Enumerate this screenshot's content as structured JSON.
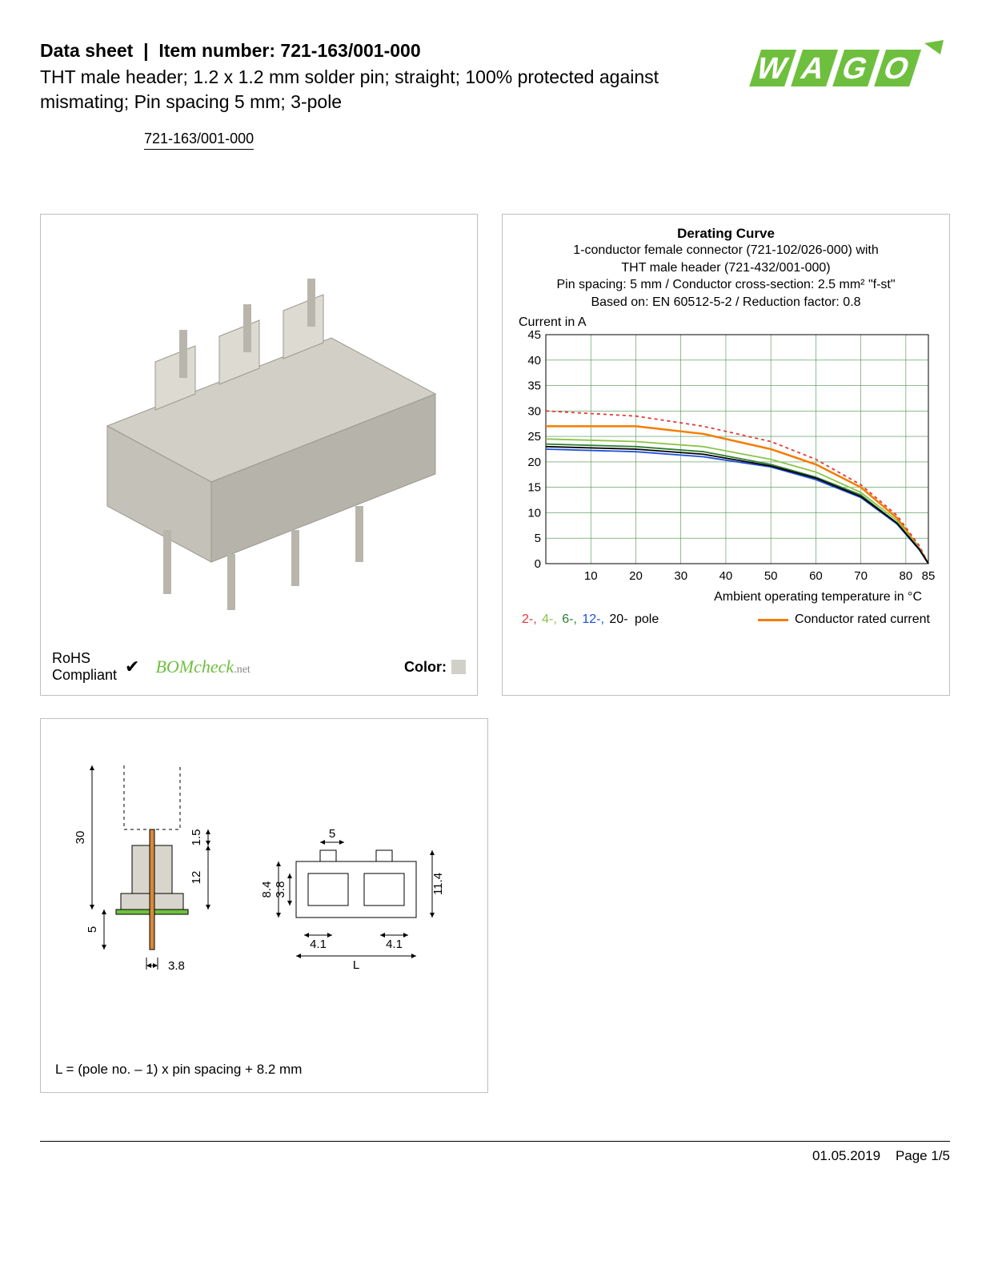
{
  "header": {
    "datasheet_label": "Data sheet",
    "item_label": "Item number:",
    "item_number": "721-163/001-000",
    "subtitle": "THT male header; 1.2 x 1.2 mm solder pin; straight; 100% protected against mismating; Pin spacing 5 mm; 3-pole",
    "part_link": "721-163/001-000",
    "logo_color": "#6fbf3f"
  },
  "product": {
    "housing_color": "#d2d0c6",
    "pin_color": "#b8b6ac",
    "rohs_line1": "RoHS",
    "rohs_line2": "Compliant",
    "bomcheck": "BOMcheck",
    "bomcheck_suffix": ".net",
    "color_label": "Color:",
    "color_swatch": "#d0d0c8"
  },
  "chart": {
    "title": "Derating Curve",
    "sub1": "1-conductor female connector (721-102/026-000) with",
    "sub2": "THT male header (721-432/001-000)",
    "sub3": "Pin spacing: 5 mm / Conductor cross-section: 2.5 mm² \"f-st\"",
    "sub4": "Based on: EN 60512-5-2 / Reduction factor: 0.8",
    "y_label": "Current in A",
    "x_label": "Ambient operating temperature in °C",
    "x_min": 0,
    "x_max": 85,
    "x_ticks": [
      10,
      20,
      30,
      40,
      50,
      60,
      70,
      80,
      85
    ],
    "y_min": 0,
    "y_max": 45,
    "y_ticks": [
      0,
      5,
      10,
      15,
      20,
      25,
      30,
      35,
      40,
      45
    ],
    "grid_color": "#4a8f4a",
    "bg_color": "#ffffff",
    "axis_fontsize": 15,
    "series": {
      "rated": {
        "color": "#f57c00",
        "width": 2.5,
        "dash": "none",
        "pts": [
          [
            0,
            27
          ],
          [
            20,
            27
          ],
          [
            35,
            25.5
          ],
          [
            50,
            22.5
          ],
          [
            60,
            19.5
          ],
          [
            70,
            15
          ],
          [
            78,
            9
          ],
          [
            83,
            3
          ],
          [
            85,
            0
          ]
        ]
      },
      "pole2": {
        "color": "#e53935",
        "width": 1.8,
        "dash": "4,4",
        "pts": [
          [
            0,
            30
          ],
          [
            20,
            29
          ],
          [
            35,
            27
          ],
          [
            50,
            24
          ],
          [
            60,
            20.5
          ],
          [
            70,
            15.5
          ],
          [
            78,
            9.5
          ],
          [
            83,
            3.5
          ],
          [
            85,
            0
          ]
        ]
      },
      "pole4": {
        "color": "#8bc34a",
        "width": 1.8,
        "dash": "none",
        "pts": [
          [
            0,
            24.5
          ],
          [
            20,
            24
          ],
          [
            35,
            23
          ],
          [
            50,
            20.5
          ],
          [
            60,
            18
          ],
          [
            70,
            14
          ],
          [
            78,
            8.5
          ],
          [
            83,
            3
          ],
          [
            85,
            0
          ]
        ]
      },
      "pole6": {
        "color": "#2e7d32",
        "width": 1.8,
        "dash": "none",
        "pts": [
          [
            0,
            23.5
          ],
          [
            20,
            23
          ],
          [
            35,
            22
          ],
          [
            50,
            19.5
          ],
          [
            60,
            17
          ],
          [
            70,
            13.5
          ],
          [
            78,
            8
          ],
          [
            83,
            2.8
          ],
          [
            85,
            0
          ]
        ]
      },
      "pole12": {
        "color": "#1e4fd6",
        "width": 1.8,
        "dash": "none",
        "pts": [
          [
            0,
            22.5
          ],
          [
            20,
            22
          ],
          [
            35,
            21
          ],
          [
            50,
            19
          ],
          [
            60,
            16.5
          ],
          [
            70,
            13
          ],
          [
            78,
            7.8
          ],
          [
            83,
            2.7
          ],
          [
            85,
            0
          ]
        ]
      },
      "pole20": {
        "color": "#000000",
        "width": 1.8,
        "dash": "none",
        "pts": [
          [
            0,
            23
          ],
          [
            20,
            22.5
          ],
          [
            35,
            21.5
          ],
          [
            50,
            19.2
          ],
          [
            60,
            16.8
          ],
          [
            70,
            13.2
          ],
          [
            78,
            8
          ],
          [
            83,
            2.8
          ],
          [
            85,
            0
          ]
        ]
      }
    },
    "legend_poles": [
      {
        "label": "2-,",
        "color": "#e53935"
      },
      {
        "label": "4-,",
        "color": "#8bc34a"
      },
      {
        "label": "6-,",
        "color": "#2e7d32"
      },
      {
        "label": "12-,",
        "color": "#1e4fd6"
      },
      {
        "label": "20-",
        "color": "#000000"
      }
    ],
    "legend_poles_suffix": " pole",
    "legend_rated": "Conductor rated current"
  },
  "dimensions": {
    "values": {
      "h_total": 30,
      "pin_below": 5,
      "pin_dia": 3.8,
      "top_gap": 1.5,
      "body_h": 12,
      "pitch": 5,
      "side_h": 8.4,
      "side_h2": 3.8,
      "overall_h": 11.4,
      "tab": 4.1,
      "length_sym": "L"
    },
    "formula": "L = (pole no. – 1) x pin spacing + 8.2 mm",
    "line_color": "#000000",
    "housing_fill": "#d8d6cc",
    "pin_fill": "#d68a3a",
    "pcb_fill": "#6fbf3f"
  },
  "footer": {
    "date": "01.05.2019",
    "page": "Page 1/5"
  }
}
